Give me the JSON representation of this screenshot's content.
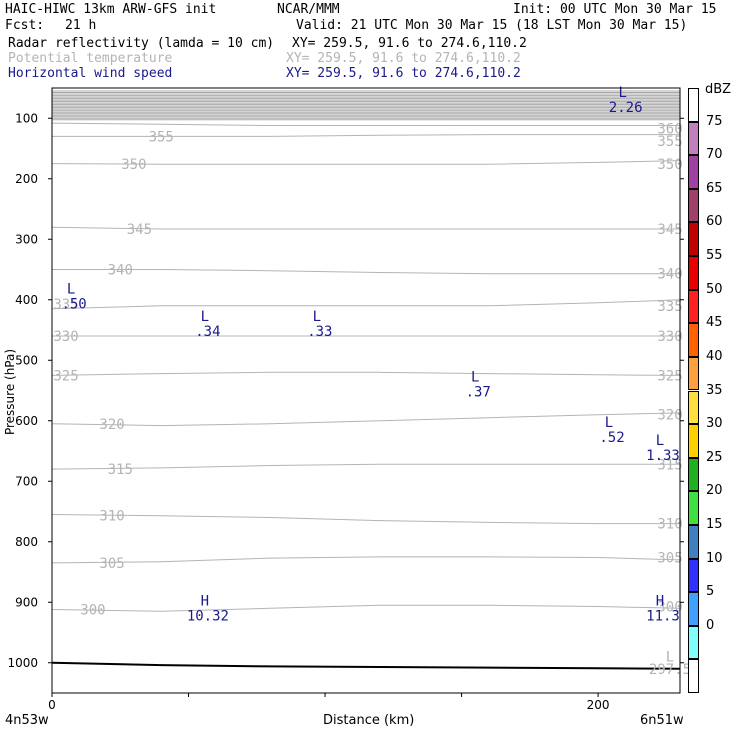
{
  "header": {
    "model": "HAIC-HIWC 13km ARW-GFS init",
    "org": "NCAR/MMM",
    "init": "Init: 00 UTC Mon 30 Mar 15",
    "fcst_label": "Fcst:",
    "fcst_value": "21 h",
    "valid": "Valid: 21 UTC Mon 30 Mar 15 (18 LST Mon 30 Mar 15)",
    "fields": [
      {
        "name": "Radar reflectivity (lamda = 10 cm)",
        "xy": "XY= 259.5, 91.6 to 274.6,110.2",
        "color": "#000000"
      },
      {
        "name": "Potential temperature",
        "xy": "XY= 259.5, 91.6 to 274.6,110.2",
        "color": "#b4b4b4"
      },
      {
        "name": "Horizontal wind speed",
        "xy": "XY= 259.5, 91.6 to 274.6,110.2",
        "color": "#1a1a8c"
      }
    ]
  },
  "footer": {
    "left": "4n53w",
    "right": "6n51w",
    "xlabel": "Distance (km)"
  },
  "colorbar": {
    "unit": "dBZ",
    "ticks": [
      "75",
      "70",
      "65",
      "60",
      "55",
      "50",
      "45",
      "40",
      "35",
      "30",
      "25",
      "20",
      "15",
      "10",
      "5",
      "0"
    ],
    "colors": [
      "#ffffff",
      "#c080c0",
      "#a040a0",
      "#a0406a",
      "#c00000",
      "#e80000",
      "#ff2020",
      "#ff6000",
      "#ffa040",
      "#ffe040",
      "#ffd000",
      "#20b020",
      "#40e040",
      "#4080c0",
      "#3030ff",
      "#40a0ff",
      "#80ffff",
      "#ffffff"
    ]
  },
  "chart_data": {
    "type": "contour",
    "xlabel": "Distance (km)",
    "ylabel": "Pressure (hPa)",
    "xlim": [
      0,
      230
    ],
    "ylim": [
      1050,
      50
    ],
    "x_ticks": [
      0,
      100,
      200
    ],
    "x_tick_labels": [
      "0",
      "",
      "200"
    ],
    "y_ticks": [
      100,
      200,
      300,
      400,
      500,
      600,
      700,
      800,
      900,
      1000
    ],
    "theta_contours": [
      {
        "level": 300,
        "x": [
          0,
          40,
          80,
          120,
          160,
          200,
          230
        ],
        "p": [
          912,
          915,
          910,
          905,
          905,
          907,
          910
        ]
      },
      {
        "level": 305,
        "x": [
          0,
          40,
          80,
          120,
          160,
          200,
          230
        ],
        "p": [
          835,
          833,
          827,
          825,
          825,
          826,
          830
        ]
      },
      {
        "level": 310,
        "x": [
          0,
          40,
          80,
          120,
          160,
          200,
          230
        ],
        "p": [
          755,
          757,
          760,
          765,
          768,
          770,
          770
        ]
      },
      {
        "level": 315,
        "x": [
          0,
          40,
          80,
          120,
          160,
          200,
          230
        ],
        "p": [
          680,
          678,
          674,
          672,
          672,
          672,
          672
        ]
      },
      {
        "level": 320,
        "x": [
          0,
          40,
          80,
          120,
          160,
          200,
          230
        ],
        "p": [
          605,
          608,
          605,
          600,
          595,
          590,
          587
        ]
      },
      {
        "level": 325,
        "x": [
          0,
          40,
          80,
          120,
          160,
          200,
          230
        ],
        "p": [
          525,
          522,
          520,
          520,
          522,
          524,
          525
        ]
      },
      {
        "level": 330,
        "x": [
          0,
          40,
          80,
          120,
          160,
          200,
          230
        ],
        "p": [
          460,
          460,
          460,
          460,
          460,
          460,
          460
        ]
      },
      {
        "level": 335,
        "x": [
          0,
          40,
          80,
          120,
          160,
          200,
          230
        ],
        "p": [
          415,
          410,
          410,
          410,
          410,
          405,
          400
        ]
      },
      {
        "level": 340,
        "x": [
          0,
          40,
          80,
          120,
          160,
          200,
          230
        ],
        "p": [
          350,
          350,
          352,
          355,
          357,
          357,
          357
        ]
      },
      {
        "level": 345,
        "x": [
          0,
          40,
          80,
          120,
          160,
          200,
          230
        ],
        "p": [
          280,
          283,
          283,
          283,
          283,
          283,
          283
        ]
      },
      {
        "level": 350,
        "x": [
          0,
          40,
          80,
          120,
          160,
          200,
          230
        ],
        "p": [
          175,
          176,
          176,
          176,
          176,
          173,
          170
        ]
      },
      {
        "level": 355,
        "x": [
          0,
          40,
          80,
          120,
          160,
          200,
          230
        ],
        "p": [
          130,
          130,
          130,
          128,
          127,
          127,
          127
        ]
      },
      {
        "level": 360,
        "x": [
          0,
          40,
          80,
          120,
          160,
          200,
          230
        ],
        "p": [
          108,
          110,
          112,
          112,
          112,
          112,
          112
        ]
      }
    ],
    "theta_labels": [
      {
        "text": "355",
        "x": 40,
        "p": 130
      },
      {
        "text": "360",
        "x": 280,
        "p": 117
      },
      {
        "text": "355",
        "x": 255,
        "p": 138
      },
      {
        "text": "350",
        "x": 30,
        "p": 176
      },
      {
        "text": "350",
        "x": 230,
        "p": 176
      },
      {
        "text": "345",
        "x": 32,
        "p": 283
      },
      {
        "text": "345",
        "x": 230,
        "p": 283
      },
      {
        "text": "340",
        "x": 25,
        "p": 350
      },
      {
        "text": "340",
        "x": 230,
        "p": 357
      },
      {
        "text": "335",
        "x": 5,
        "p": 407
      },
      {
        "text": "335",
        "x": 238,
        "p": 410
      },
      {
        "text": "330",
        "x": 2,
        "p": 460
      },
      {
        "text": "330",
        "x": 230,
        "p": 460
      },
      {
        "text": "325",
        "x": -5,
        "p": 525
      },
      {
        "text": "325",
        "x": 238,
        "p": 525
      },
      {
        "text": "320",
        "x": 22,
        "p": 605
      },
      {
        "text": "320",
        "x": 238,
        "p": 590
      },
      {
        "text": "315",
        "x": 25,
        "p": 680
      },
      {
        "text": "315",
        "x": 238,
        "p": 672
      },
      {
        "text": "310",
        "x": 22,
        "p": 757
      },
      {
        "text": "310",
        "x": 238,
        "p": 770
      },
      {
        "text": "305",
        "x": 22,
        "p": 835
      },
      {
        "text": "305",
        "x": 238,
        "p": 826
      },
      {
        "text": "300",
        "x": 15,
        "p": 912
      },
      {
        "text": "300",
        "x": 245,
        "p": 907
      },
      {
        "text": "297.5",
        "x": 245,
        "p": 1010
      }
    ],
    "theta_extremes": [
      {
        "text": "L",
        "x": 240,
        "p": 990
      }
    ],
    "wind_extremes": [
      {
        "kind": "L",
        "value": "2.26",
        "x": 209,
        "p": 65
      },
      {
        "kind": "L",
        "value": ".50",
        "x": 7,
        "p": 390
      },
      {
        "kind": "L",
        "value": ".34",
        "x": 56,
        "p": 435
      },
      {
        "kind": "L",
        "value": ".33",
        "x": 97,
        "p": 435
      },
      {
        "kind": "L",
        "value": ".37",
        "x": 155,
        "p": 535
      },
      {
        "kind": "L",
        "value": ".52",
        "x": 204,
        "p": 610
      },
      {
        "kind": "L",
        "value": "1.33",
        "x": 294,
        "p": 640
      },
      {
        "kind": "H",
        "value": "10.32",
        "x": 56,
        "p": 905
      },
      {
        "kind": "H",
        "value": "11.3",
        "x": 285,
        "p": 905
      }
    ],
    "terrain": {
      "x": [
        0,
        40,
        80,
        120,
        160,
        200,
        230
      ],
      "p": [
        1000,
        1004,
        1006,
        1007,
        1008,
        1009,
        1010
      ]
    }
  }
}
